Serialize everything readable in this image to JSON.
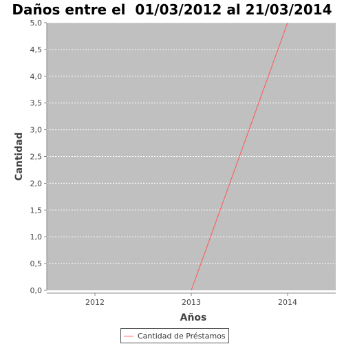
{
  "chart_data": {
    "type": "line",
    "title": "Daños entre el  01/03/2012 al 21/03/2014",
    "xlabel": "Años",
    "ylabel": "Cantidad",
    "categories": [
      "2012",
      "2013",
      "2014"
    ],
    "series": [
      {
        "name": "Cantidad de Préstamos",
        "values": [
          null,
          0,
          5
        ],
        "color": "#ff5555"
      }
    ],
    "ylim": [
      0,
      5
    ],
    "yticks": [
      "0,0",
      "0,5",
      "1,0",
      "1,5",
      "2,0",
      "2,5",
      "3,0",
      "3,5",
      "4,0",
      "4,5",
      "5,0"
    ],
    "grid": true,
    "legend_position": "bottom",
    "plot_background": "#c0c0c0"
  }
}
